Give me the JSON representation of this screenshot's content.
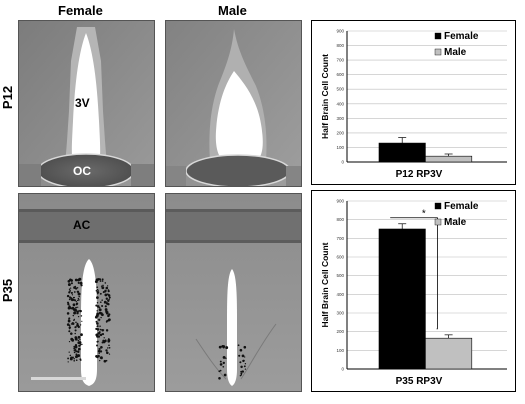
{
  "columns": {
    "female": "Female",
    "male": "Male"
  },
  "rows": {
    "p12": "P12",
    "p35": "P35"
  },
  "labels": {
    "third_ventricle": "3V",
    "optic_chiasm": "OC",
    "anterior_commissure": "AC"
  },
  "colors": {
    "female": "#000000",
    "male": "#c0c0c0",
    "tissue": "#8a8a8a",
    "ventricle": "#ffffff"
  },
  "chart_data": [
    {
      "type": "bar",
      "title": "P12 RP3V",
      "ylabel": "Half Brain Cell Count",
      "ylim": [
        0,
        900
      ],
      "yticks": [
        "0",
        "100",
        "200",
        "300",
        "400",
        "500",
        "600",
        "700",
        "800",
        "900"
      ],
      "categories": [
        "Female",
        "Male"
      ],
      "values": [
        130,
        40
      ],
      "errors": [
        38,
        15
      ],
      "legend": [
        "Female",
        "Male"
      ],
      "legend_position": "top-right",
      "grid": true
    },
    {
      "type": "bar",
      "title": "P35 RP3V",
      "ylabel": "Half Brain Cell Count",
      "ylim": [
        0,
        900
      ],
      "yticks": [
        "0",
        "100",
        "200",
        "300",
        "400",
        "500",
        "600",
        "700",
        "800",
        "900"
      ],
      "categories": [
        "Female",
        "Male"
      ],
      "values": [
        750,
        165
      ],
      "errors": [
        28,
        18
      ],
      "legend": [
        "Female",
        "Male"
      ],
      "legend_position": "top-right",
      "grid": true,
      "significance": "*"
    }
  ]
}
